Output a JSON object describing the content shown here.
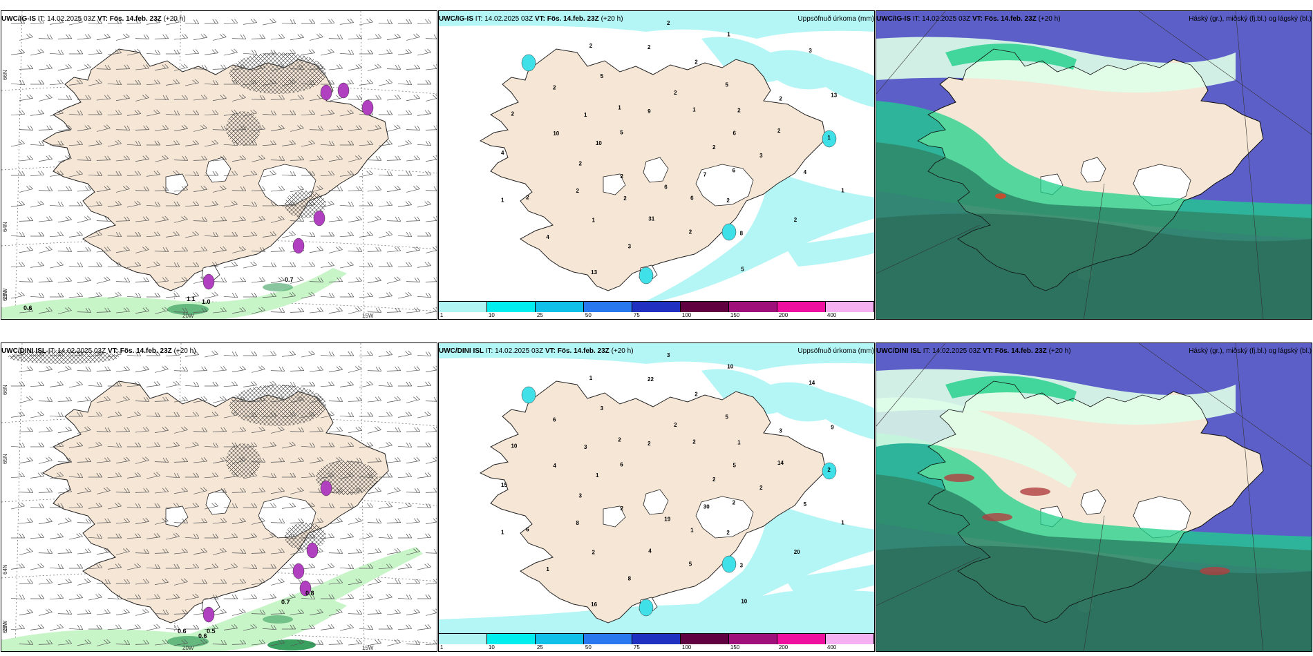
{
  "rows": [
    {
      "model": "UWC/IG-IS",
      "init_label": "IT:",
      "init_time": "14.02.2025 03Z",
      "valid_label": "VT:",
      "valid_time": "Fös. 14.feb. 23Z",
      "lead": "(+20 h)",
      "panels": {
        "wind": {
          "lat_labels": [
            "66N",
            "64N",
            "63N"
          ],
          "lon_labels": [
            "25W",
            "20W",
            "15W"
          ],
          "values": [
            "0.6",
            "1.1",
            "1.0",
            "0.7"
          ]
        },
        "precip": {
          "title": "Uppsöfnuð úrkoma (mm)",
          "values": [
            "2",
            "2",
            "2",
            "2",
            "10",
            "2",
            "3",
            "2",
            "1",
            "1",
            "1",
            "6",
            "1",
            "2",
            "1",
            "2",
            "2",
            "4",
            "3",
            "6",
            "1",
            "3",
            "2",
            "2",
            "8",
            "2",
            "13",
            "13",
            "9",
            "6",
            "2",
            "5",
            "2",
            "2",
            "1",
            "4",
            "2",
            "7",
            "10",
            "2",
            "31",
            "5",
            "4",
            "2",
            "1",
            "5",
            "5",
            "6",
            "2"
          ]
        },
        "cloud": {
          "title": "Háský (gr.), miðský (fj.bl.) og lágský (bl.)"
        }
      }
    },
    {
      "model": "UWC/DINI ISL",
      "init_label": "IT:",
      "init_time": "14.02.2025 03Z",
      "valid_label": "VT:",
      "valid_time": "Fös. 14.feb. 23Z",
      "lead": "(+20 h)",
      "panels": {
        "wind": {
          "lat_labels": [
            "66N",
            "65N",
            "64N",
            "63N"
          ],
          "lon_labels": [
            "25W",
            "20W",
            "15W"
          ],
          "values": [
            "0.6",
            "0.6",
            "0.5",
            "0.7",
            "0.8"
          ]
        },
        "precip": {
          "title": "Uppsöfnuð úrkoma (mm)",
          "values": [
            "2",
            "2",
            "2",
            "2",
            "4",
            "3",
            "8",
            "1",
            "1",
            "1",
            "2",
            "1",
            "3",
            "14",
            "2",
            "22",
            "20",
            "15",
            "14",
            "19",
            "2",
            "2",
            "8",
            "2",
            "3",
            "10",
            "9",
            "16",
            "2",
            "2",
            "3",
            "5",
            "5",
            "6",
            "2",
            "1",
            "3",
            "30",
            "1",
            "1",
            "4",
            "3",
            "5",
            "6",
            "10",
            "10",
            "6",
            "5"
          ]
        },
        "cloud": {
          "title": "Háský (gr.), miðský (fj.bl.) og lágský (bl.)"
        }
      }
    }
  ],
  "colorbar": {
    "levels": [
      "1",
      "10",
      "25",
      "50",
      "75",
      "100",
      "150",
      "200",
      "400"
    ],
    "colors": [
      "#b0f4f4",
      "#00eeee",
      "#10c0e8",
      "#2a78f0",
      "#2030c0",
      "#600040",
      "#a0107a",
      "#f010a0",
      "#f4b0f0"
    ]
  },
  "colors": {
    "land": "#f5e6d6",
    "glacier": "#ffffff",
    "precip_light": "#b4f5f5",
    "cloud_high": "#dfffe9",
    "cloud_mid": "#5d5fc9",
    "cloud_low": "#2f8a6a",
    "cloud_green": "#1fd08a",
    "wind_green_light": "#c8f5c8",
    "wind_green_dark": "#3aa060",
    "conv_purple": "#b040c0"
  }
}
